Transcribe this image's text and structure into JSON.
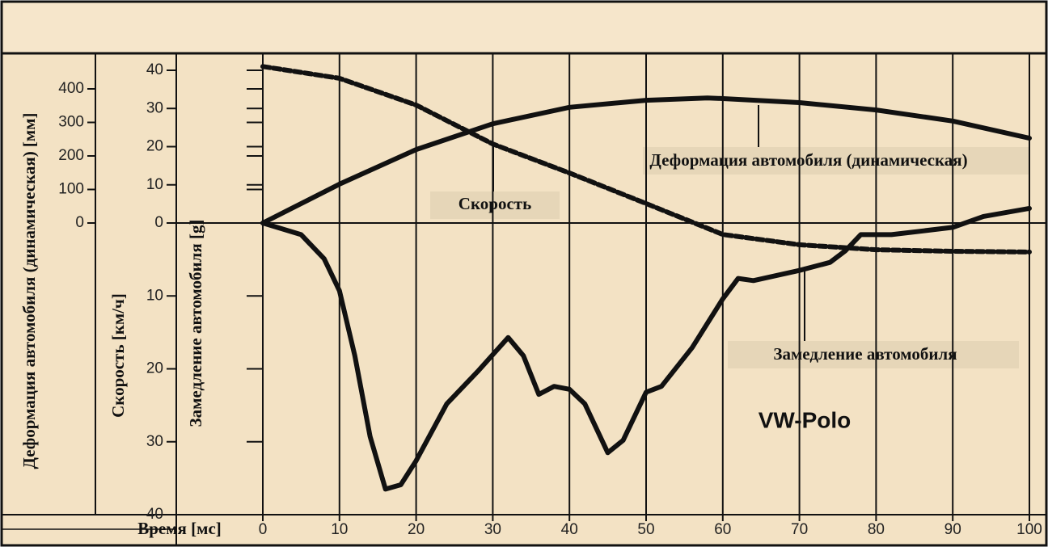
{
  "chart_data": {
    "type": "line",
    "x_label": "Время [мс]",
    "xlim": [
      0,
      100
    ],
    "xticks": [
      0,
      10,
      20,
      30,
      40,
      50,
      60,
      70,
      80,
      90,
      100
    ],
    "axes": {
      "deformation": {
        "label": "Деформация автомобиля (динамическая) [мм]",
        "ylim": [
          0,
          400
        ],
        "yticks": [
          0,
          100,
          200,
          300,
          400
        ]
      },
      "speed": {
        "label": "Скорость [км/ч]",
        "ylim": [
          0,
          40
        ],
        "yticks": [
          0,
          10,
          20,
          30,
          40
        ]
      },
      "deceleration": {
        "label": "Замедление автомобиля [g]",
        "ylim": [
          0,
          40
        ],
        "yticks": [
          10,
          20,
          30,
          40
        ],
        "inverted": true
      }
    },
    "series": [
      {
        "name": "Деформация автомобиля (динамическая)",
        "axis": "deformation",
        "color": "#111111",
        "dashed": false,
        "x": [
          0,
          10,
          20,
          30,
          40,
          50,
          58,
          60,
          70,
          80,
          90,
          100
        ],
        "values": [
          0,
          116,
          219,
          296,
          345,
          366,
          373,
          371,
          359,
          337,
          304,
          253
        ]
      },
      {
        "name": "Скорость",
        "axis": "speed",
        "color": "#111111",
        "dashed": true,
        "x": [
          0,
          10,
          20,
          30,
          40,
          50,
          60,
          70,
          80,
          90,
          100
        ],
        "values": [
          41,
          37.9,
          30.9,
          20.7,
          13.1,
          5.1,
          -3.0,
          -5.7,
          -7.0,
          -7.4,
          -7.6
        ]
      },
      {
        "name": "Замедление автомобиля",
        "axis": "deceleration",
        "color": "#111111",
        "dashed": false,
        "x": [
          0,
          5,
          8,
          10,
          12,
          14,
          16,
          18,
          20,
          24,
          28,
          32,
          34,
          36,
          38,
          40,
          42,
          45,
          47,
          50,
          52,
          56,
          60,
          62,
          64,
          70,
          74,
          76,
          78,
          82,
          90,
          94,
          100
        ],
        "values": [
          0,
          1.6,
          4.9,
          9.3,
          18.2,
          29.3,
          36.5,
          35.9,
          32.6,
          24.8,
          20.4,
          15.7,
          18.2,
          23.5,
          22.4,
          22.8,
          24.8,
          31.5,
          29.8,
          23.2,
          22.4,
          17.1,
          10.4,
          7.6,
          7.9,
          6.5,
          5.4,
          3.8,
          1.6,
          1.6,
          0.6,
          -0.9,
          -2.0
        ]
      }
    ],
    "annotation": "VW-Polo"
  }
}
